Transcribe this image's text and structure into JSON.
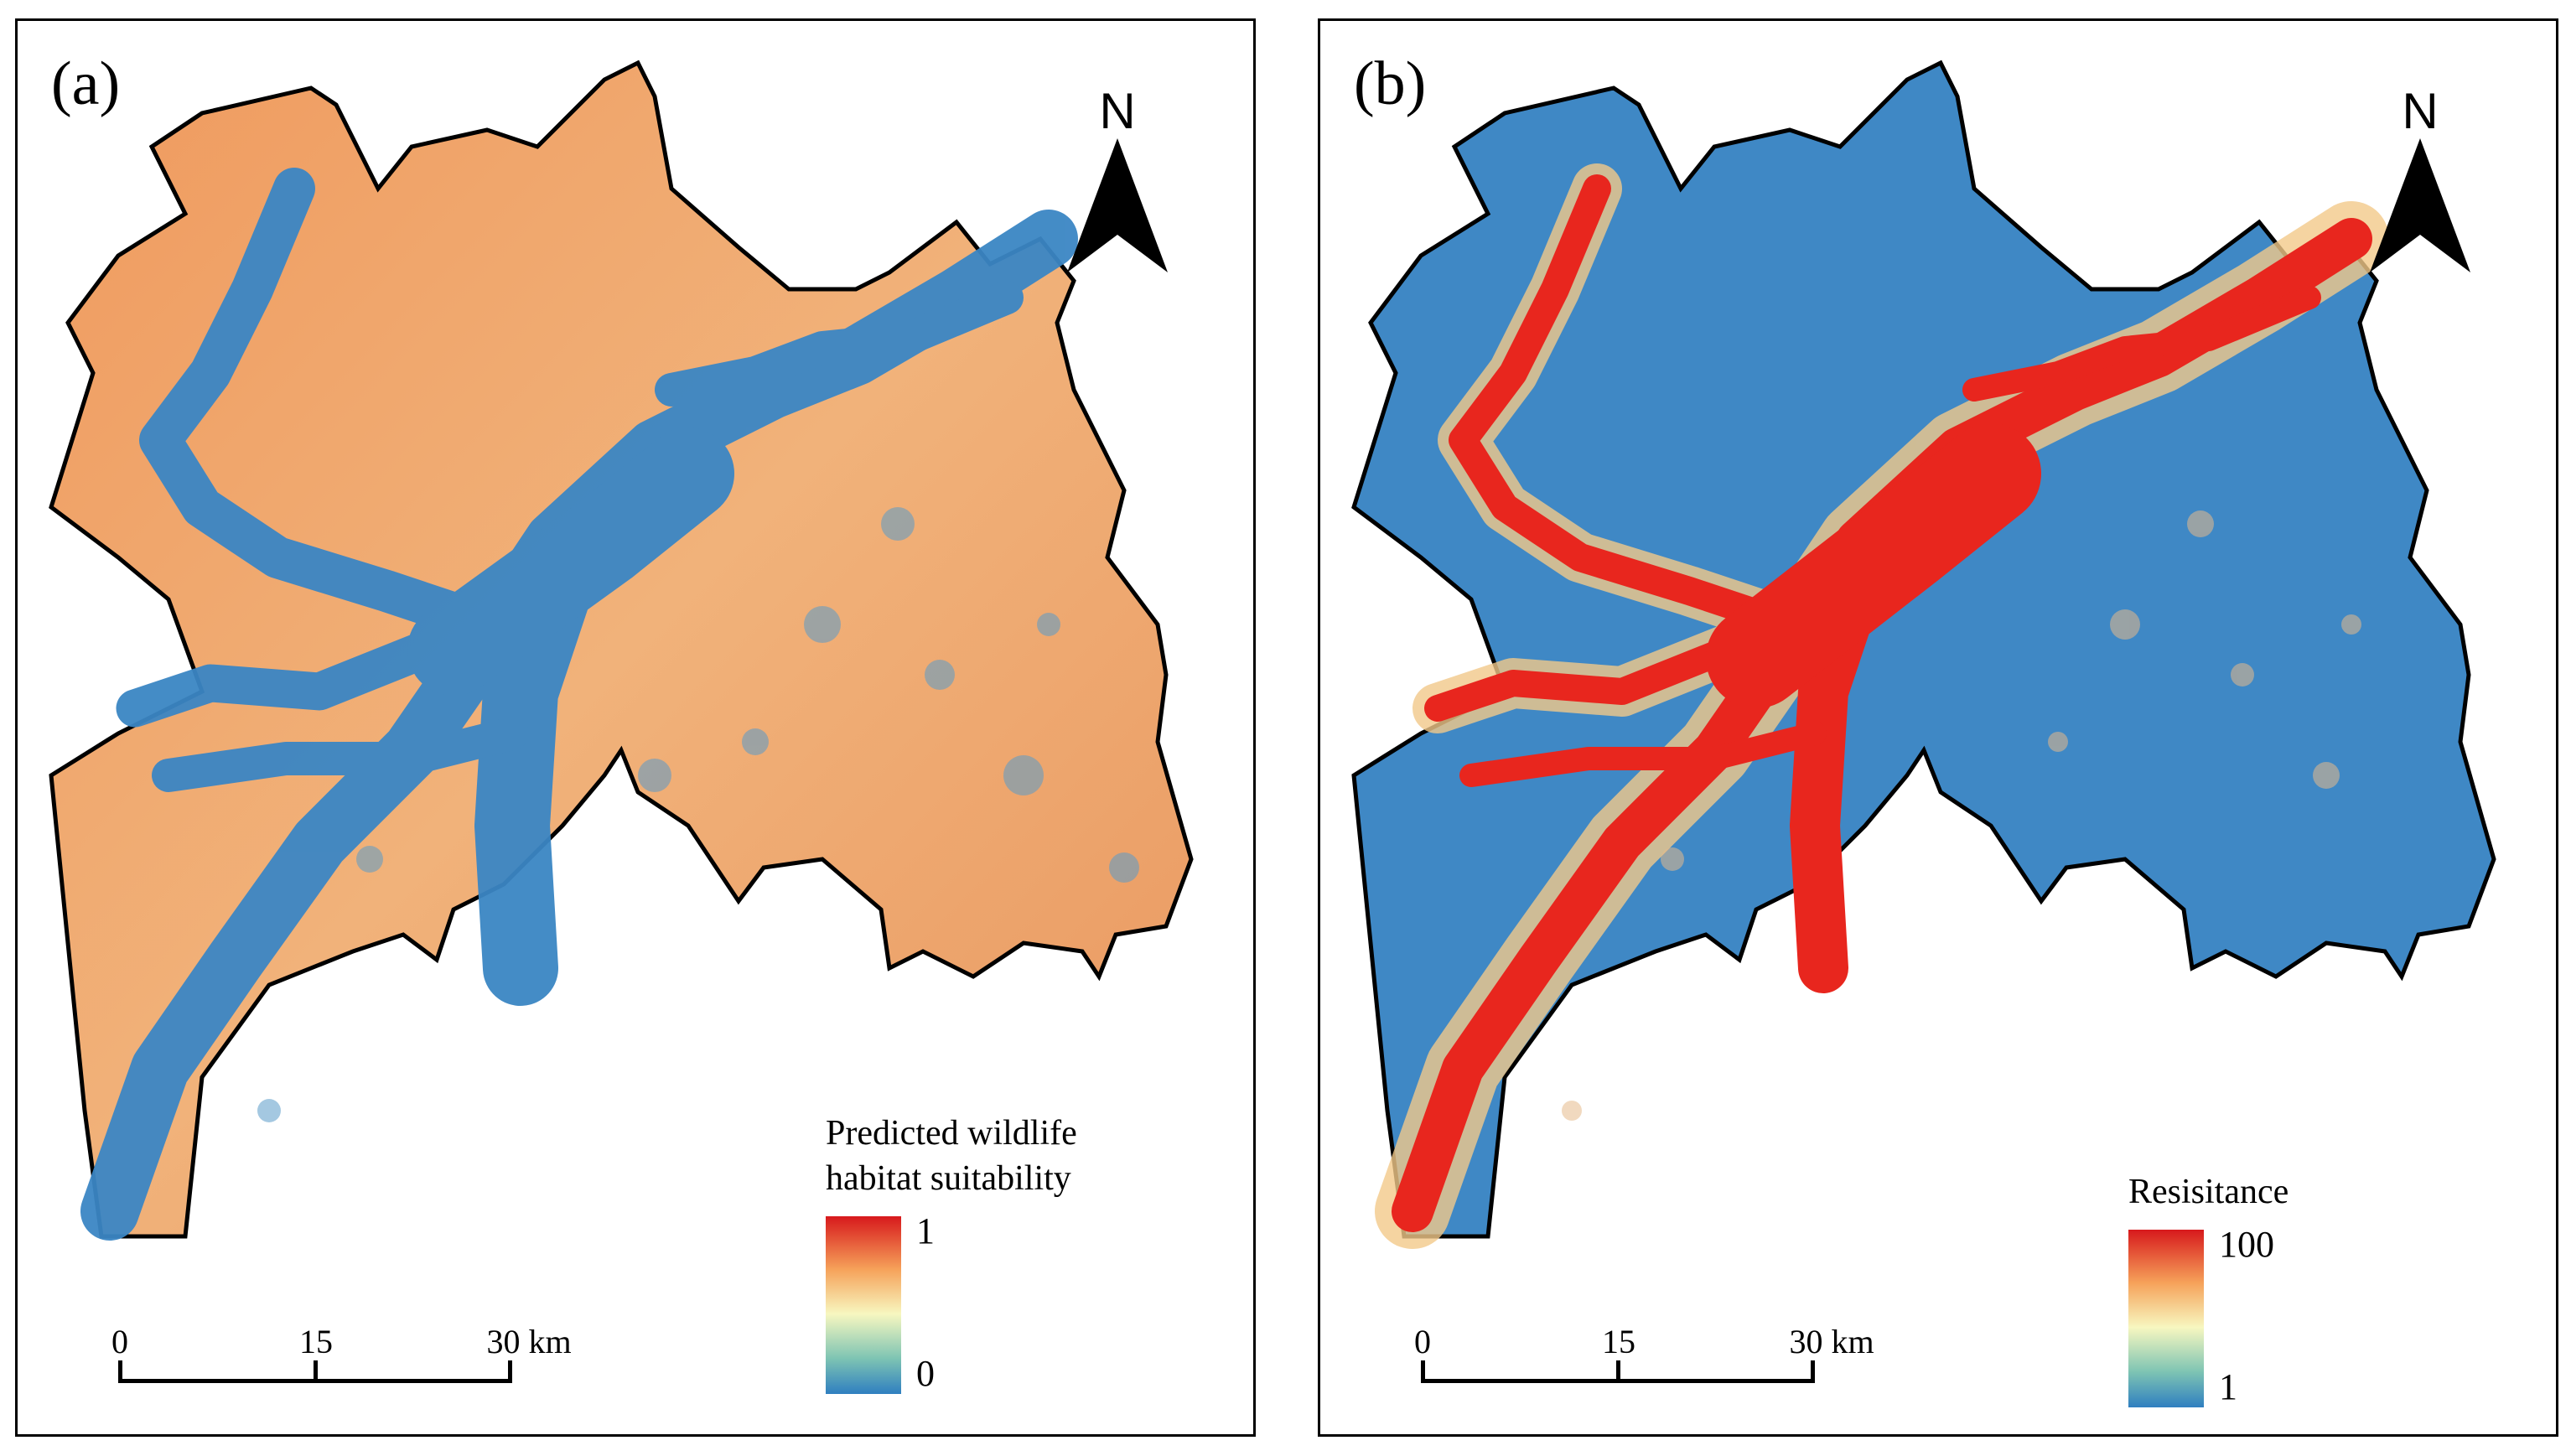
{
  "panels": [
    {
      "label": "(a)",
      "north_label": "N",
      "legend": {
        "title_line1": "Predicted wildlife",
        "title_line2": "habitat suitability",
        "max_label": "1",
        "min_label": "0"
      },
      "scale": {
        "tick0": "0",
        "tick1": "15",
        "tick2": "30 km"
      },
      "colors": {
        "low": "#2f7fc0",
        "mid": "#f7f7c0",
        "high": "#d7191c",
        "land": "#f0a066",
        "corridor": "#3b86c4"
      }
    },
    {
      "label": "(b)",
      "north_label": "N",
      "legend": {
        "title_line1": "Resisitance",
        "max_label": "100",
        "min_label": "1"
      },
      "scale": {
        "tick0": "0",
        "tick1": "15",
        "tick2": "30 km"
      },
      "colors": {
        "low": "#2f7fc0",
        "mid": "#f7f7c0",
        "high": "#d7191c",
        "land": "#3f88c5",
        "corridor": "#e8261e"
      }
    }
  ]
}
